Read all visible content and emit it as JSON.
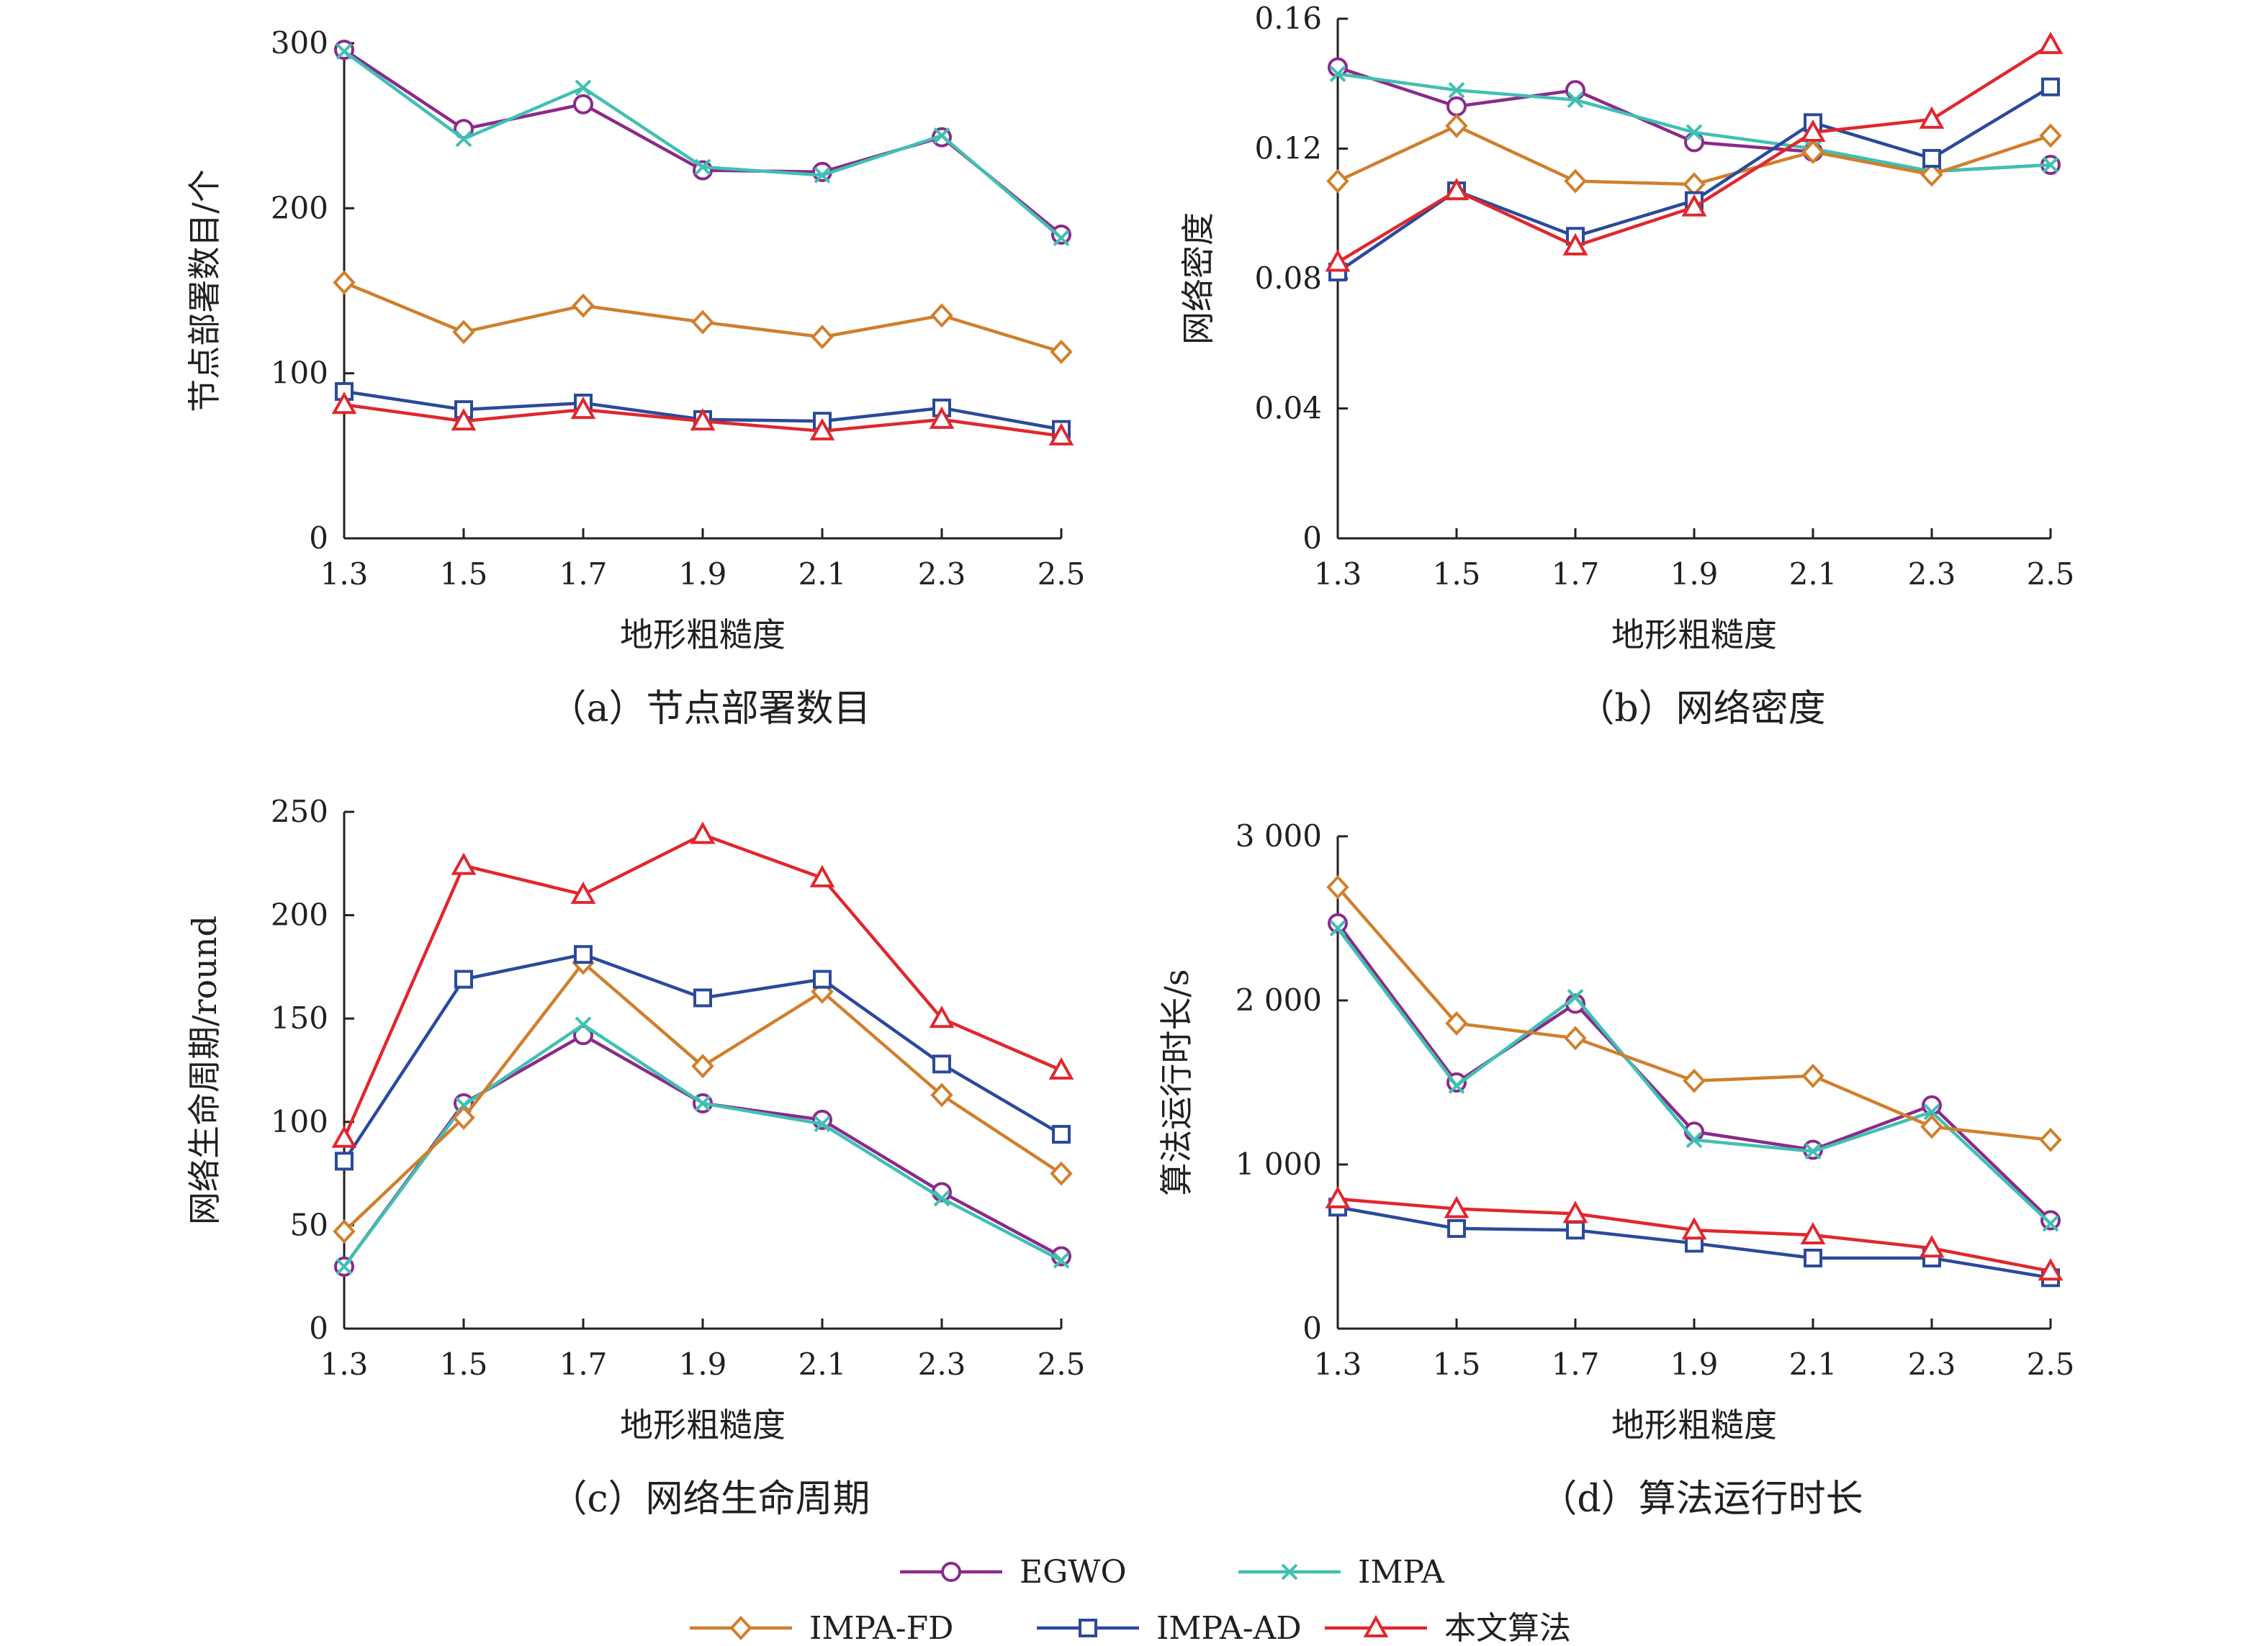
{
  "chart_data": [
    {
      "type": "line",
      "caption": "（a）节点部署数目",
      "xlabel": "地形粗糙度",
      "ylabel": "节点部署数目/个",
      "x": [
        1.3,
        1.5,
        1.7,
        1.9,
        2.1,
        2.3,
        2.5
      ],
      "x_tick_labels": [
        "1.3",
        "1.5",
        "1.7",
        "1.9",
        "2.1",
        "2.3",
        "2.5"
      ],
      "ylim": [
        0,
        300
      ],
      "y_ticks": [
        0,
        100,
        200,
        300
      ],
      "y_tick_labels": [
        "0",
        "100",
        "200",
        "300"
      ],
      "series": [
        {
          "name": "EGWO",
          "values": [
            296,
            248,
            263,
            223,
            222,
            243,
            184
          ]
        },
        {
          "name": "IMPA",
          "values": [
            295,
            242,
            273,
            225,
            220,
            244,
            182
          ]
        },
        {
          "name": "IMPA-FD",
          "values": [
            155,
            125,
            141,
            131,
            122,
            135,
            113
          ]
        },
        {
          "name": "IMPA-AD",
          "values": [
            89,
            78,
            82,
            72,
            71,
            79,
            66
          ]
        },
        {
          "name": "本文算法",
          "values": [
            81,
            71,
            78,
            71,
            65,
            72,
            62
          ]
        }
      ]
    },
    {
      "type": "line",
      "caption": "（b）网络密度",
      "xlabel": "地形粗糙度",
      "ylabel": "网络密度",
      "x": [
        1.3,
        1.5,
        1.7,
        1.9,
        2.1,
        2.3,
        2.5
      ],
      "x_tick_labels": [
        "1.3",
        "1.5",
        "1.7",
        "1.9",
        "2.1",
        "2.3",
        "2.5"
      ],
      "ylim": [
        0,
        0.16
      ],
      "y_ticks": [
        0,
        0.04,
        0.08,
        0.12,
        0.16
      ],
      "y_tick_labels": [
        "0",
        "0.04",
        "0.08",
        "0.12",
        "0.16"
      ],
      "series": [
        {
          "name": "EGWO",
          "values": [
            0.145,
            0.133,
            0.138,
            0.122,
            0.119,
            0.113,
            0.115
          ]
        },
        {
          "name": "IMPA",
          "values": [
            0.143,
            0.138,
            0.135,
            0.125,
            0.12,
            0.113,
            0.115
          ]
        },
        {
          "name": "IMPA-FD",
          "values": [
            0.11,
            0.127,
            0.11,
            0.109,
            0.119,
            0.112,
            0.124
          ]
        },
        {
          "name": "IMPA-AD",
          "values": [
            0.082,
            0.107,
            0.093,
            0.104,
            0.128,
            0.117,
            0.139
          ]
        },
        {
          "name": "本文算法",
          "values": [
            0.085,
            0.107,
            0.09,
            0.102,
            0.125,
            0.129,
            0.152
          ]
        }
      ]
    },
    {
      "type": "line",
      "caption": "（c）网络生命周期",
      "xlabel": "地形粗糙度",
      "ylabel": "网络生命周期/round",
      "x": [
        1.3,
        1.5,
        1.7,
        1.9,
        2.1,
        2.3,
        2.5
      ],
      "x_tick_labels": [
        "1.3",
        "1.5",
        "1.7",
        "1.9",
        "2.1",
        "2.3",
        "2.5"
      ],
      "ylim": [
        0,
        250
      ],
      "y_ticks": [
        0,
        50,
        100,
        150,
        200,
        250
      ],
      "y_tick_labels": [
        "0",
        "50",
        "100",
        "150",
        "200",
        "250"
      ],
      "series": [
        {
          "name": "EGWO",
          "values": [
            30,
            109,
            142,
            109,
            101,
            66,
            35
          ]
        },
        {
          "name": "IMPA",
          "values": [
            30,
            108,
            147,
            109,
            99,
            63,
            33
          ]
        },
        {
          "name": "IMPA-FD",
          "values": [
            47,
            102,
            177,
            127,
            163,
            113,
            75
          ]
        },
        {
          "name": "IMPA-AD",
          "values": [
            81,
            169,
            181,
            160,
            169,
            128,
            94
          ]
        },
        {
          "name": "本文算法",
          "values": [
            92,
            224,
            210,
            239,
            218,
            150,
            125
          ]
        }
      ]
    },
    {
      "type": "line",
      "caption": "（d）算法运行时长",
      "xlabel": "地形粗糙度",
      "ylabel": "算法运行时长/s",
      "x": [
        1.3,
        1.5,
        1.7,
        1.9,
        2.1,
        2.3,
        2.5
      ],
      "x_tick_labels": [
        "1.3",
        "1.5",
        "1.7",
        "1.9",
        "2.1",
        "2.3",
        "2.5"
      ],
      "ylim": [
        0,
        3000
      ],
      "y_ticks": [
        0,
        1000,
        2000,
        3000
      ],
      "y_tick_labels": [
        "0",
        "1 000",
        "2 000",
        "3 000"
      ],
      "series": [
        {
          "name": "EGWO",
          "values": [
            2470,
            1500,
            1980,
            1200,
            1090,
            1360,
            660
          ]
        },
        {
          "name": "IMPA",
          "values": [
            2440,
            1480,
            2020,
            1150,
            1080,
            1320,
            640
          ]
        },
        {
          "name": "IMPA-FD",
          "values": [
            2690,
            1860,
            1770,
            1510,
            1540,
            1230,
            1150
          ]
        },
        {
          "name": "IMPA-AD",
          "values": [
            740,
            610,
            600,
            520,
            430,
            430,
            310
          ]
        },
        {
          "name": "本文算法",
          "values": [
            790,
            730,
            700,
            600,
            570,
            490,
            350
          ]
        }
      ]
    }
  ],
  "legend": [
    {
      "name": "EGWO",
      "color": "#8b2a8b",
      "marker": "circle"
    },
    {
      "name": "IMPA",
      "color": "#3fc0b3",
      "marker": "x"
    },
    {
      "name": "IMPA-FD",
      "color": "#d07f2c",
      "marker": "diamond"
    },
    {
      "name": "IMPA-AD",
      "color": "#2a4a9a",
      "marker": "square"
    },
    {
      "name": "本文算法",
      "color": "#e0272d",
      "marker": "triangle"
    }
  ]
}
